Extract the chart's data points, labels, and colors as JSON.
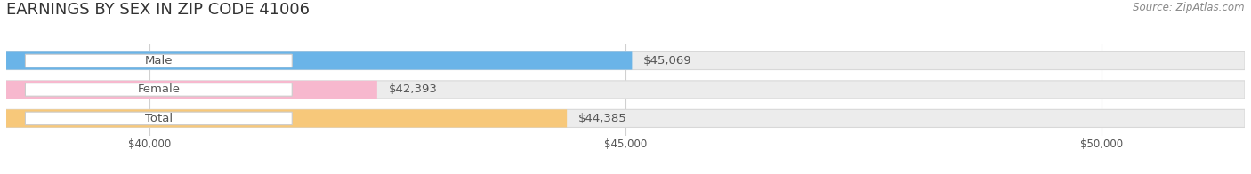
{
  "title": "EARNINGS BY SEX IN ZIP CODE 41006",
  "source": "Source: ZipAtlas.com",
  "categories": [
    "Male",
    "Female",
    "Total"
  ],
  "values": [
    45069,
    42393,
    44385
  ],
  "colors": [
    "#6ab4e8",
    "#f7b8ce",
    "#f7c87a"
  ],
  "xmin": 38500,
  "xmax": 51500,
  "xticks": [
    40000,
    45000,
    50000
  ],
  "xtick_labels": [
    "$40,000",
    "$45,000",
    "$50,000"
  ],
  "bar_height": 0.62,
  "bar_bg_color": "#ececec",
  "bar_border_color": "#d8d8d8",
  "grid_color": "#d0d0d0",
  "title_fontsize": 13,
  "label_fontsize": 9.5,
  "value_fontsize": 9.5,
  "source_fontsize": 8.5,
  "pill_facecolor": "#ffffff",
  "pill_edgecolor": "#cccccc",
  "text_color": "#555555",
  "title_color": "#333333",
  "source_color": "#888888"
}
